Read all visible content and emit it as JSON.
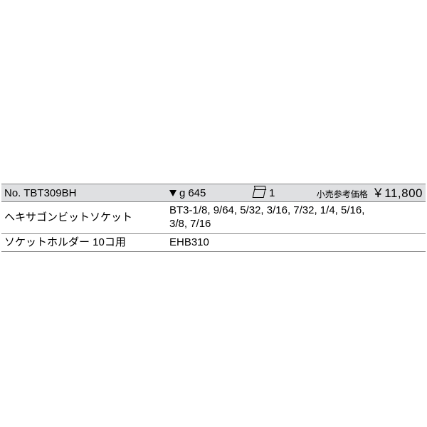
{
  "header": {
    "no_label": "No.",
    "product_no": "TBT309BH",
    "weight_unit": "g",
    "weight_value": "645",
    "box_qty": "1",
    "price_label": "小売参考価格",
    "price_value": "￥11,800"
  },
  "rows": [
    {
      "label": "ヘキサゴンビットソケット",
      "value": "BT3-1/8, 9/64, 5/32, 3/16, 7/32, 1/4, 5/16,\n3/8, 7/16"
    },
    {
      "label": "ソケットホルダー 10コ用",
      "value": "EHB310"
    }
  ]
}
